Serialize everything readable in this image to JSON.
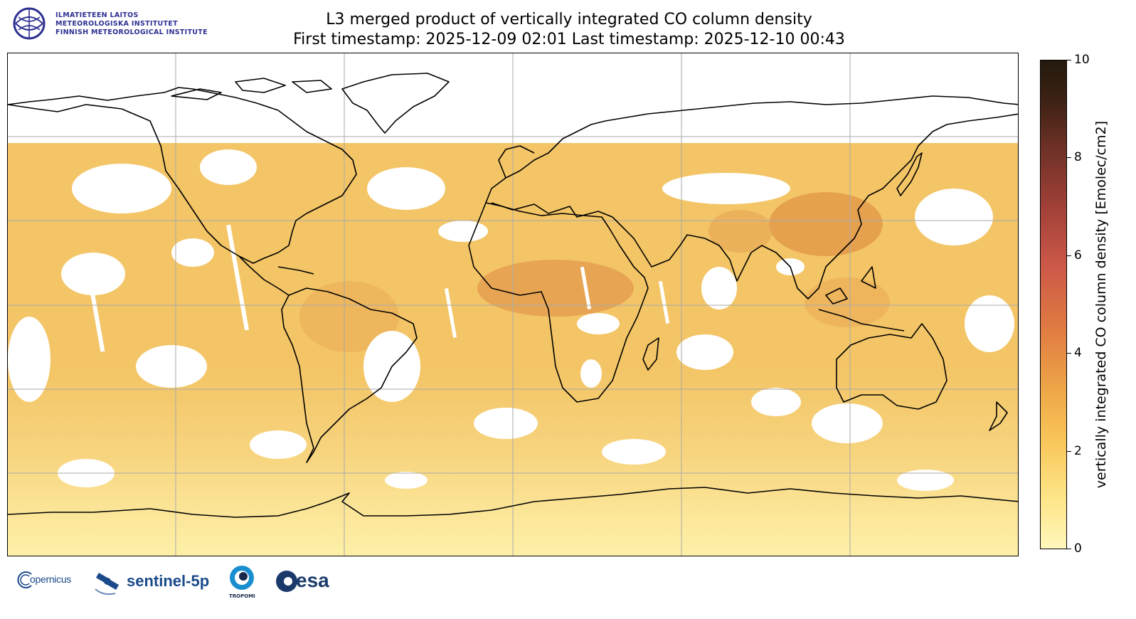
{
  "header": {
    "institute_lines": [
      "ILMATIETEEN LAITOS",
      "METEOROLOGISKA INSTITUTET",
      "FINNISH METEOROLOGICAL INSTITUTE"
    ],
    "title": "L3 merged product of vertically integrated CO column density",
    "subtitle": "First timestamp: 2025-12-09 02:01   Last timestamp: 2025-12-10 00:43"
  },
  "colorbar": {
    "label": "vertically integrated CO column density [Emolec/cm2]",
    "ticks": [
      "0",
      "2",
      "4",
      "6",
      "8",
      "10"
    ],
    "range": [
      0,
      10
    ],
    "colors": [
      "#fff7bc",
      "#f9c65a",
      "#e07b42",
      "#cc5848",
      "#6e3126",
      "#231a0d"
    ]
  },
  "map": {
    "projection": "plate carree",
    "coastlines": true,
    "gridlines": true,
    "data_colors": {
      "background": "#f3c566",
      "land_high": "#e29a4e",
      "polar_low": "#fdf0a8",
      "no_data": "#ffffff"
    }
  },
  "footer": {
    "logos": [
      "opernicus",
      "sentinel-5p",
      "TROPOMI",
      "esa"
    ]
  }
}
